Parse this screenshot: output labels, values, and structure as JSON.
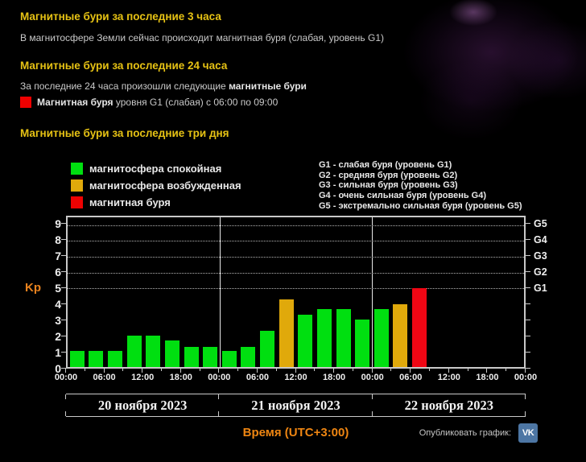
{
  "sections": {
    "last3h": {
      "title": "Магнитные бури за последние 3 часа",
      "body": "В магнитосфере Земли сейчас происходит магнитная буря (слабая, уровень G1)"
    },
    "last24h": {
      "title": "Магнитные бури за последние 24 часа",
      "body_prefix": "За последние 24 часа произошли следующие ",
      "body_bold": "магнитные бури",
      "storm": {
        "bold": "Магнитная буря",
        "rest": " уровня G1 (слабая) с 06:00 по 09:00",
        "marker_color": "#ee0000"
      }
    },
    "last3days": {
      "title": "Магнитные бури за последние три дня"
    }
  },
  "legend": {
    "items": [
      {
        "label": "магнитосфера спокойная",
        "color": "#00df10",
        "state": "quiet"
      },
      {
        "label": "магнитосфера возбужденная",
        "color": "#e0a90b",
        "state": "excited"
      },
      {
        "label": "магнитная буря",
        "color": "#ee0202",
        "state": "storm"
      }
    ],
    "levels": [
      "G1 - слабая буря (уровень G1)",
      "G2 - средняя буря (уровень G2)",
      "G3 - сильная буря (уровень G3)",
      "G4 - очень сильная буря (уровень G4)",
      "G5 - экстремально сильная буря (уровень G5)"
    ]
  },
  "chart_data": {
    "type": "bar",
    "ylabel": "Kp",
    "xlabel": "Время (UTC+3:00)",
    "ylim": [
      0,
      9
    ],
    "yticks": [
      0,
      1,
      2,
      3,
      4,
      5,
      6,
      7,
      8,
      9
    ],
    "grid_kp": [
      5,
      6,
      7,
      8,
      9
    ],
    "right_labels": [
      {
        "label": "G1",
        "kp": 5
      },
      {
        "label": "G2",
        "kp": 6
      },
      {
        "label": "G3",
        "kp": 7
      },
      {
        "label": "G4",
        "kp": 8
      },
      {
        "label": "G5",
        "kp": 9
      }
    ],
    "x_tick_labels": [
      "00:00",
      "06:00",
      "12:00",
      "18:00",
      "00:00",
      "06:00",
      "12:00",
      "18:00",
      "00:00",
      "06:00",
      "12:00",
      "18:00",
      "00:00"
    ],
    "slot_hours": 3,
    "days": [
      {
        "date": "20 ноября 2023",
        "values": [
          1.0,
          1.0,
          1.0,
          2.0,
          2.0,
          1.7,
          1.3,
          1.3
        ],
        "states": [
          "quiet",
          "quiet",
          "quiet",
          "quiet",
          "quiet",
          "quiet",
          "quiet",
          "quiet"
        ]
      },
      {
        "date": "21 ноября 2023",
        "values": [
          1.0,
          1.3,
          2.3,
          4.3,
          3.3,
          3.7,
          3.7,
          3.0
        ],
        "states": [
          "quiet",
          "quiet",
          "quiet",
          "excited",
          "quiet",
          "quiet",
          "quiet",
          "quiet"
        ]
      },
      {
        "date": "22 ноября 2023",
        "values": [
          3.7,
          4.0,
          5.0,
          null,
          null,
          null,
          null,
          null
        ],
        "states": [
          "quiet",
          "excited",
          "storm",
          null,
          null,
          null,
          null,
          null
        ]
      }
    ],
    "colors": {
      "quiet": "#00df10",
      "excited": "#e0a90b",
      "storm": "#ef0614"
    }
  },
  "footer": {
    "publish_label": "Опубликовать график:",
    "vk_text": "VK"
  }
}
